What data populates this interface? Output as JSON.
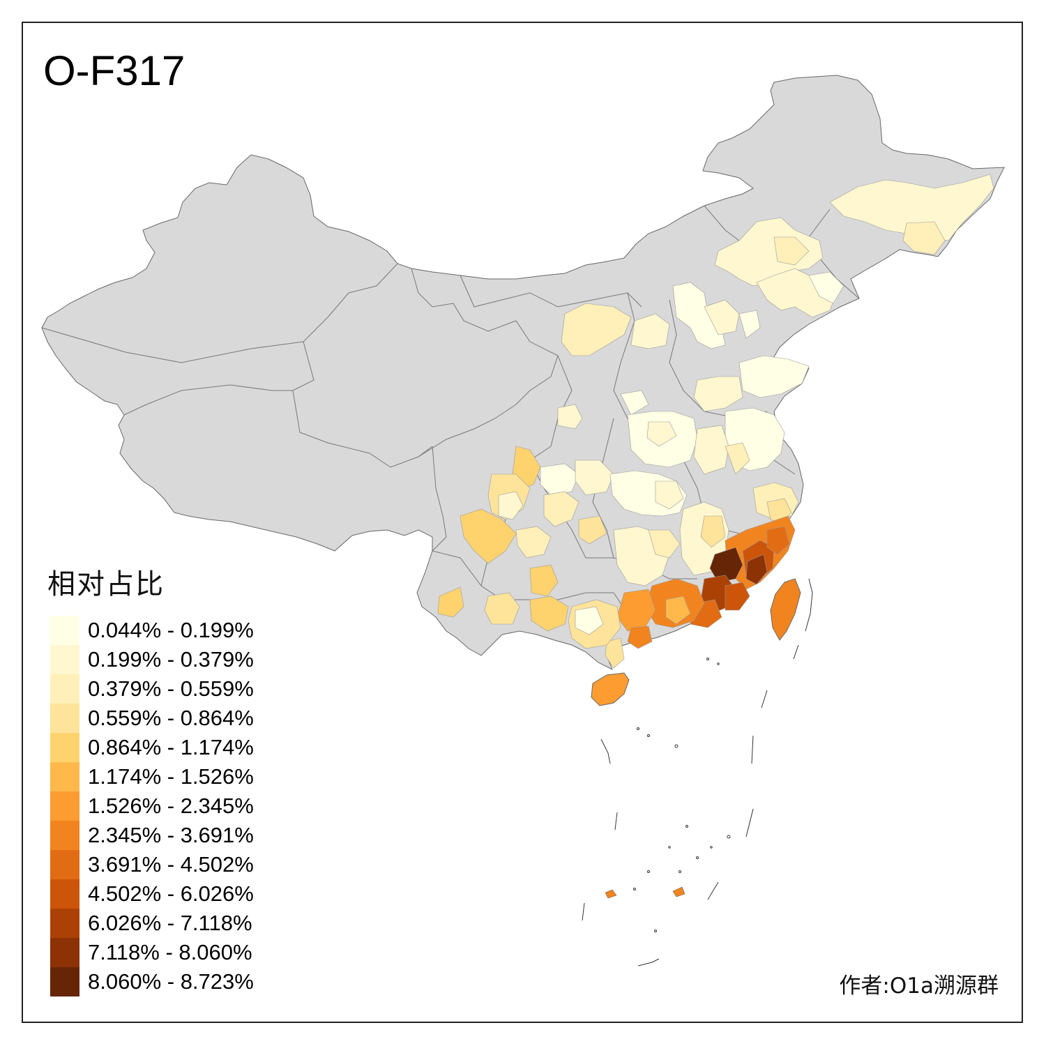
{
  "title": "O-F317",
  "legend": {
    "title": "相对占比",
    "items": [
      {
        "label": "0.044% - 0.199%",
        "color": "#FFFFE5"
      },
      {
        "label": "0.199% - 0.379%",
        "color": "#FFF7CF"
      },
      {
        "label": "0.379% - 0.559%",
        "color": "#FEF0B8"
      },
      {
        "label": "0.559% - 0.864%",
        "color": "#FEE49A"
      },
      {
        "label": "0.864% - 1.174%",
        "color": "#FED36E"
      },
      {
        "label": "1.174% - 1.526%",
        "color": "#FEB94A"
      },
      {
        "label": "1.526% - 2.345%",
        "color": "#FC9C31"
      },
      {
        "label": "2.345% - 3.691%",
        "color": "#F2841F"
      },
      {
        "label": "3.691% - 4.502%",
        "color": "#E26C13"
      },
      {
        "label": "4.502% - 6.026%",
        "color": "#CC550A"
      },
      {
        "label": "6.026% - 7.118%",
        "color": "#AB4104"
      },
      {
        "label": "7.118% - 8.060%",
        "color": "#8C3205"
      },
      {
        "label": "8.060% - 8.723%",
        "color": "#662506"
      }
    ]
  },
  "map": {
    "no_data_color": "#D9D9D9",
    "border_color": "#666666"
  },
  "author": "作者:O1a溯源群"
}
